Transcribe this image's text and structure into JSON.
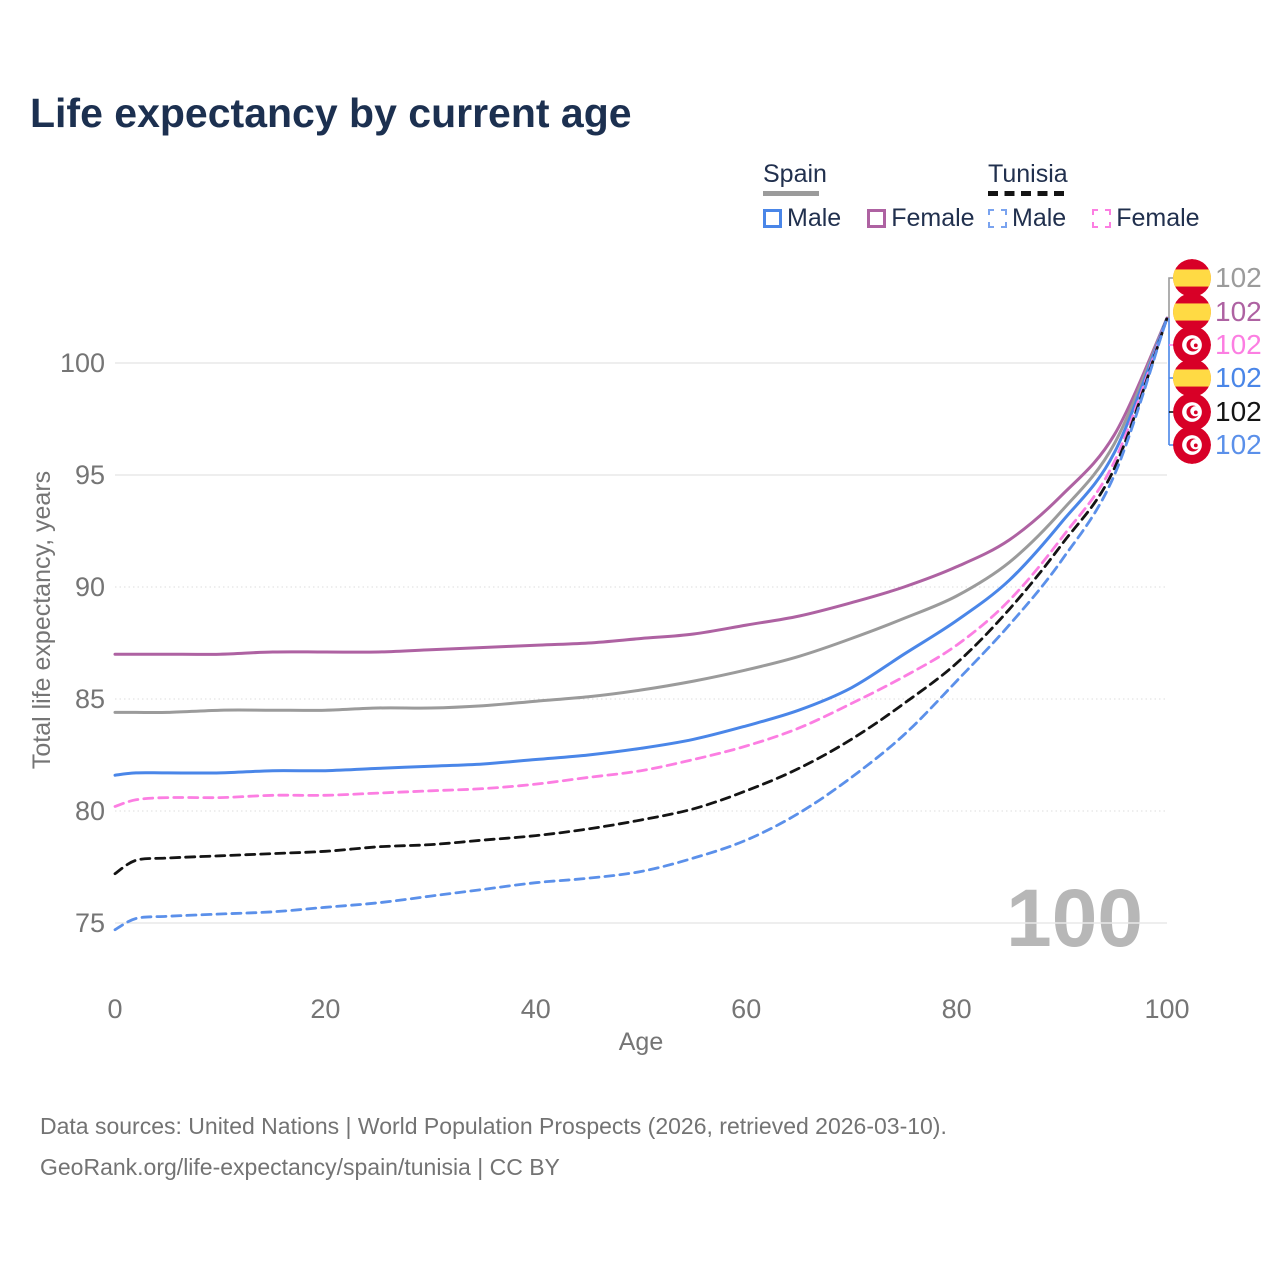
{
  "title": "Life expectancy by current age",
  "legend": {
    "groups": [
      {
        "label": "Spain",
        "line_style": "solid",
        "underline_color": "#9b9b9b",
        "items": [
          {
            "label": "Male",
            "color": "#4a86e8",
            "dashed": false
          },
          {
            "label": "Female",
            "color": "#ae62a2",
            "dashed": false
          }
        ]
      },
      {
        "label": "Tunisia",
        "line_style": "dashed",
        "underline_color": "#141414",
        "items": [
          {
            "label": "Male",
            "color": "#7aa3ef",
            "dashed": true
          },
          {
            "label": "Female",
            "color": "#fc7ee2",
            "dashed": true
          }
        ]
      }
    ]
  },
  "watermark_age_counter": "100",
  "footer": {
    "line1": "Data sources: United Nations | World Population Prospects (2026, retrieved 2026-03-10).",
    "line2": "GeoRank.org/life-expectancy/spain/tunisia | CC BY"
  },
  "colors": {
    "title_text": "#1c3050",
    "axis_text": "#757575",
    "gridline": "#e8e8e8",
    "watermark": "#b7b7b7",
    "flag_red": "#d80027",
    "flag_yellow": "#ffda44",
    "leader_gray": "#9b9b9b",
    "leader_blue": "#4a86e8"
  },
  "chart_data": {
    "type": "line",
    "title": "Life expectancy by current age",
    "xlabel": "Age",
    "ylabel": "Total life expectancy, years",
    "x_ticks": [
      0,
      20,
      40,
      60,
      80,
      100
    ],
    "y_ticks": [
      75,
      80,
      85,
      90,
      95,
      100
    ],
    "y_ticks_dotted": [
      80,
      85,
      90
    ],
    "xlim": [
      0,
      100
    ],
    "ylim": [
      73.5,
      102.5
    ],
    "grid": true,
    "legend_position": "top-right",
    "ages": [
      0,
      2,
      5,
      10,
      15,
      20,
      25,
      30,
      35,
      40,
      45,
      50,
      55,
      60,
      65,
      70,
      75,
      80,
      85,
      90,
      95,
      100
    ],
    "series": [
      {
        "name": "Spain Female",
        "country": "Spain",
        "sex": "Female",
        "color": "#ae62a2",
        "dashed": false,
        "values": [
          87.0,
          87.0,
          87.0,
          87.0,
          87.1,
          87.1,
          87.1,
          87.2,
          87.3,
          87.4,
          87.5,
          87.7,
          87.9,
          88.3,
          88.7,
          89.3,
          90.0,
          90.9,
          92.1,
          94.1,
          96.8,
          102
        ]
      },
      {
        "name": "Spain Both sexes",
        "country": "Spain",
        "sex": "Both",
        "color": "#9b9b9b",
        "dashed": false,
        "values": [
          84.4,
          84.4,
          84.4,
          84.5,
          84.5,
          84.5,
          84.6,
          84.6,
          84.7,
          84.9,
          85.1,
          85.4,
          85.8,
          86.3,
          86.9,
          87.7,
          88.6,
          89.6,
          91.1,
          93.4,
          96.4,
          102
        ]
      },
      {
        "name": "Spain Male",
        "country": "Spain",
        "sex": "Male",
        "color": "#4a86e8",
        "dashed": false,
        "values": [
          81.6,
          81.7,
          81.7,
          81.7,
          81.8,
          81.8,
          81.9,
          82.0,
          82.1,
          82.3,
          82.5,
          82.8,
          83.2,
          83.8,
          84.5,
          85.5,
          87.0,
          88.5,
          90.3,
          92.9,
          96.0,
          102
        ]
      },
      {
        "name": "Tunisia Female",
        "country": "Tunisia",
        "sex": "Female",
        "color": "#fc7ee2",
        "dashed": true,
        "values": [
          80.2,
          80.5,
          80.6,
          80.6,
          80.7,
          80.7,
          80.8,
          80.9,
          81.0,
          81.2,
          81.5,
          81.8,
          82.3,
          82.9,
          83.7,
          84.8,
          86.0,
          87.4,
          89.4,
          92.2,
          95.6,
          102
        ]
      },
      {
        "name": "Tunisia Both sexes",
        "country": "Tunisia",
        "sex": "Both",
        "color": "#141414",
        "dashed": true,
        "values": [
          77.2,
          77.8,
          77.9,
          78.0,
          78.1,
          78.2,
          78.4,
          78.5,
          78.7,
          78.9,
          79.2,
          79.6,
          80.1,
          80.9,
          81.9,
          83.2,
          84.8,
          86.6,
          89.0,
          91.9,
          95.3,
          102
        ]
      },
      {
        "name": "Tunisia Male",
        "country": "Tunisia",
        "sex": "Male",
        "color": "#5b90ea",
        "dashed": true,
        "values": [
          74.7,
          75.2,
          75.3,
          75.4,
          75.5,
          75.7,
          75.9,
          76.2,
          76.5,
          76.8,
          77.0,
          77.3,
          77.9,
          78.7,
          79.9,
          81.5,
          83.4,
          85.8,
          88.3,
          91.2,
          95.0,
          102
        ]
      }
    ],
    "end_labels": [
      {
        "flag": "spain",
        "series": "Spain Both sexes",
        "value": "102",
        "color": "#9b9b9b"
      },
      {
        "flag": "spain",
        "series": "Spain Female",
        "value": "102",
        "color": "#ae62a2"
      },
      {
        "flag": "tunisia",
        "series": "Tunisia Female",
        "value": "102",
        "color": "#fc7ee2"
      },
      {
        "flag": "spain",
        "series": "Spain Male",
        "value": "102",
        "color": "#4a86e8"
      },
      {
        "flag": "tunisia",
        "series": "Tunisia Both sexes",
        "value": "102",
        "color": "#141414"
      },
      {
        "flag": "tunisia",
        "series": "Tunisia Male",
        "value": "102",
        "color": "#5b90ea"
      }
    ]
  }
}
